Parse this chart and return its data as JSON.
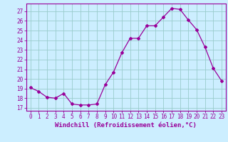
{
  "x": [
    0,
    1,
    2,
    3,
    4,
    5,
    6,
    7,
    8,
    9,
    10,
    11,
    12,
    13,
    14,
    15,
    16,
    17,
    18,
    19,
    20,
    21,
    22,
    23
  ],
  "y": [
    19.1,
    18.7,
    18.1,
    18.0,
    18.5,
    17.4,
    17.3,
    17.3,
    17.4,
    19.4,
    20.7,
    22.7,
    24.2,
    24.2,
    25.5,
    25.5,
    26.4,
    27.3,
    27.2,
    26.1,
    25.1,
    23.3,
    21.1,
    19.8
  ],
  "line_color": "#990099",
  "marker": "D",
  "marker_size": 2,
  "bg_color": "#cceeff",
  "grid_color": "#99cccc",
  "ylabel_ticks": [
    17,
    18,
    19,
    20,
    21,
    22,
    23,
    24,
    25,
    26,
    27
  ],
  "xlabel": "Windchill (Refroidissement éolien,°C)",
  "xlim": [
    -0.5,
    23.5
  ],
  "ylim": [
    16.7,
    27.8
  ],
  "axis_color": "#990099",
  "font_color": "#990099",
  "tick_fontsize": 5.5,
  "xlabel_fontsize": 6.5
}
